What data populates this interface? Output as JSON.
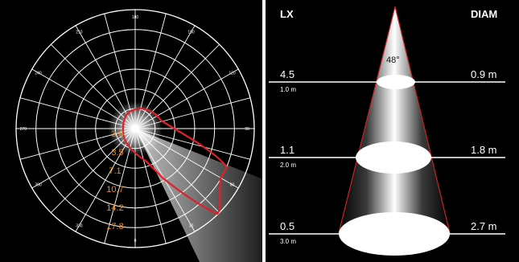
{
  "polar": {
    "angle_labels": [
      "0",
      "30",
      "60",
      "90",
      "120",
      "150",
      "180",
      "210",
      "240",
      "270",
      "300",
      "330"
    ],
    "radial_labels": [
      "3.6",
      "3.5",
      "7.1",
      "10.7",
      "14.2",
      "17.8"
    ],
    "colors": {
      "grid": "#ffffff",
      "curve": "#e0202a",
      "radial_label": "#f08a1e"
    }
  },
  "cone": {
    "header_left": "LX",
    "header_right": "DIAM",
    "beam_angle": "48°",
    "levels": [
      {
        "lux": "4.5",
        "distance": "1.0 m",
        "diameter": "0.9 m"
      },
      {
        "lux": "1.1",
        "distance": "2.0 m",
        "diameter": "1.8 m"
      },
      {
        "lux": "0.5",
        "distance": "3.0 m",
        "diameter": "2.7 m"
      }
    ],
    "colors": {
      "edge": "#cc2222",
      "text": "#ffffff"
    }
  }
}
